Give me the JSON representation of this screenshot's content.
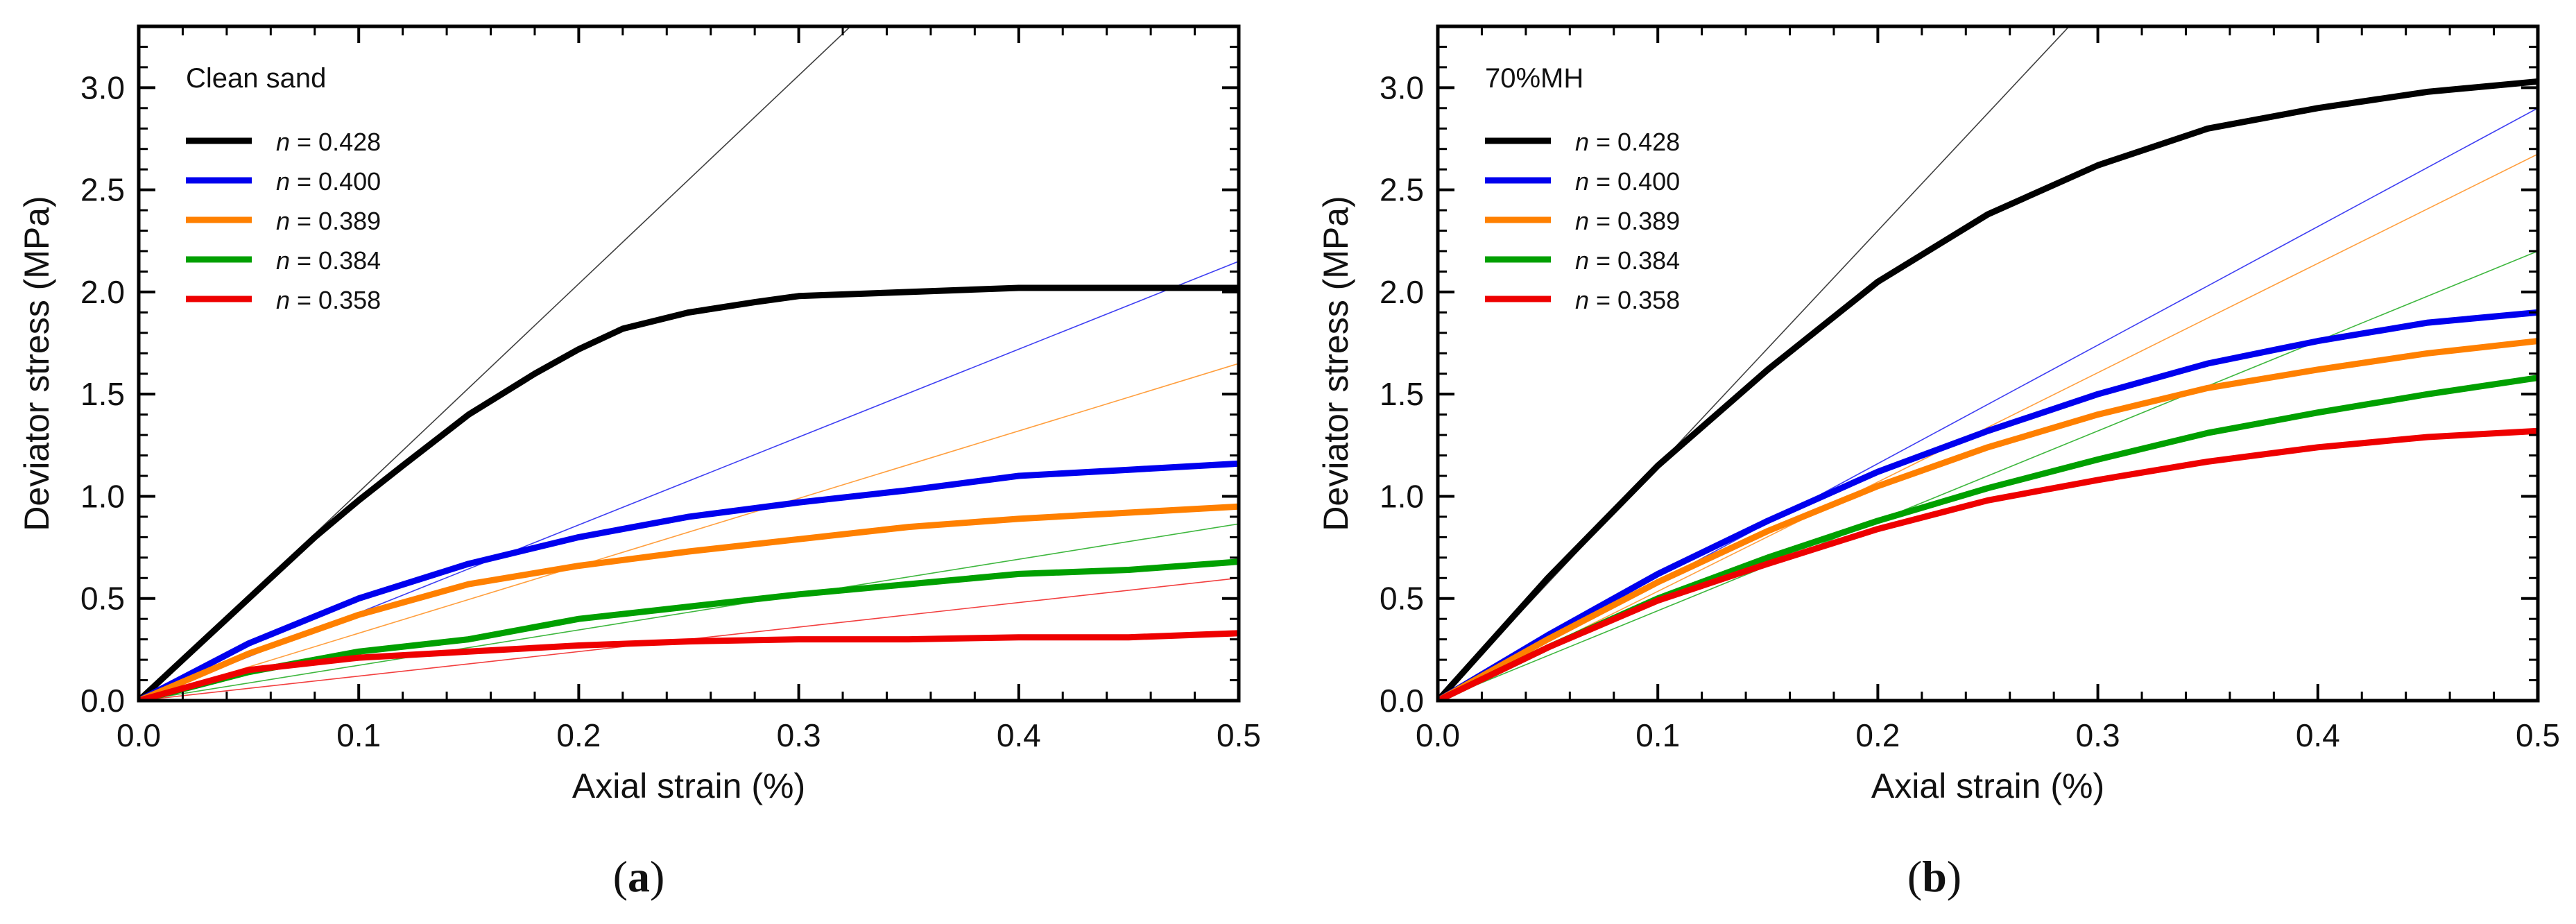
{
  "chart_data": [
    {
      "type": "line",
      "panel_label": "(a)",
      "annotation": "Clean sand",
      "xlabel": "Axial strain (%)",
      "ylabel": "Deviator stress (MPa)",
      "xlim": [
        0,
        0.5
      ],
      "ylim": [
        0,
        3.3
      ],
      "xticks": [
        "0.0",
        "0.1",
        "0.2",
        "0.3",
        "0.4",
        "0.5"
      ],
      "yticks": [
        "0.0",
        "0.5",
        "1.0",
        "1.5",
        "2.0",
        "2.5",
        "3.0"
      ],
      "legend_position": "top-left",
      "series": [
        {
          "name": "n = 0.428",
          "legend_var": "n",
          "legend_value": "= 0.428",
          "color": "#000000",
          "x": [
            0,
            0.02,
            0.05,
            0.08,
            0.1,
            0.12,
            0.15,
            0.18,
            0.2,
            0.22,
            0.25,
            0.28,
            0.3,
            0.35,
            0.4,
            0.45,
            0.5
          ],
          "y": [
            0,
            0.2,
            0.5,
            0.8,
            0.98,
            1.15,
            1.4,
            1.6,
            1.72,
            1.82,
            1.9,
            1.95,
            1.98,
            2.0,
            2.02,
            2.02,
            2.02
          ],
          "tangent_slope": 10.2
        },
        {
          "name": "n = 0.400",
          "legend_var": "n",
          "legend_value": "= 0.400",
          "color": "#0000ee",
          "x": [
            0,
            0.05,
            0.1,
            0.15,
            0.2,
            0.25,
            0.3,
            0.35,
            0.4,
            0.45,
            0.5
          ],
          "y": [
            0,
            0.28,
            0.5,
            0.67,
            0.8,
            0.9,
            0.97,
            1.03,
            1.1,
            1.13,
            1.16
          ],
          "tangent_slope": 4.3
        },
        {
          "name": "n = 0.389",
          "legend_var": "n",
          "legend_value": "= 0.389",
          "color": "#ff8000",
          "x": [
            0,
            0.05,
            0.1,
            0.15,
            0.2,
            0.25,
            0.3,
            0.35,
            0.4,
            0.45,
            0.5
          ],
          "y": [
            0,
            0.23,
            0.42,
            0.57,
            0.66,
            0.73,
            0.79,
            0.85,
            0.89,
            0.92,
            0.95
          ],
          "tangent_slope": 3.3
        },
        {
          "name": "n = 0.384",
          "legend_var": "n",
          "legend_value": "= 0.384",
          "color": "#00a000",
          "x": [
            0,
            0.05,
            0.1,
            0.15,
            0.2,
            0.25,
            0.3,
            0.35,
            0.4,
            0.45,
            0.5
          ],
          "y": [
            0,
            0.14,
            0.24,
            0.3,
            0.4,
            0.46,
            0.52,
            0.57,
            0.62,
            0.64,
            0.68
          ],
          "tangent_slope": 1.73
        },
        {
          "name": "n = 0.358",
          "legend_var": "n",
          "legend_value": "= 0.358",
          "color": "#ee0000",
          "x": [
            0,
            0.05,
            0.1,
            0.15,
            0.2,
            0.25,
            0.3,
            0.35,
            0.4,
            0.45,
            0.5
          ],
          "y": [
            0,
            0.15,
            0.21,
            0.24,
            0.27,
            0.29,
            0.3,
            0.3,
            0.31,
            0.31,
            0.33
          ],
          "tangent_slope": 1.2
        }
      ]
    },
    {
      "type": "line",
      "panel_label": "(b)",
      "annotation": "70%MH",
      "xlabel": "Axial strain (%)",
      "ylabel": "Deviator stress (MPa)",
      "xlim": [
        0,
        0.5
      ],
      "ylim": [
        0,
        3.3
      ],
      "xticks": [
        "0.0",
        "0.1",
        "0.2",
        "0.3",
        "0.4",
        "0.5"
      ],
      "yticks": [
        "0.0",
        "0.5",
        "1.0",
        "1.5",
        "2.0",
        "2.5",
        "3.0"
      ],
      "legend_position": "top-left",
      "series": [
        {
          "name": "n = 0.428",
          "legend_var": "n",
          "legend_value": "= 0.428",
          "color": "#000000",
          "x": [
            0,
            0.05,
            0.1,
            0.15,
            0.2,
            0.25,
            0.3,
            0.35,
            0.4,
            0.45,
            0.5
          ],
          "y": [
            0,
            0.6,
            1.15,
            1.62,
            2.05,
            2.38,
            2.62,
            2.8,
            2.9,
            2.98,
            3.03
          ],
          "tangent_slope": 11.5
        },
        {
          "name": "n = 0.400",
          "legend_var": "n",
          "legend_value": "= 0.400",
          "color": "#0000ee",
          "x": [
            0,
            0.05,
            0.1,
            0.15,
            0.2,
            0.25,
            0.3,
            0.35,
            0.4,
            0.45,
            0.5
          ],
          "y": [
            0,
            0.32,
            0.62,
            0.88,
            1.12,
            1.32,
            1.5,
            1.65,
            1.76,
            1.85,
            1.9
          ],
          "tangent_slope": 5.8
        },
        {
          "name": "n = 0.389",
          "legend_var": "n",
          "legend_value": "= 0.389",
          "color": "#ff8000",
          "x": [
            0,
            0.05,
            0.1,
            0.15,
            0.2,
            0.25,
            0.3,
            0.35,
            0.4,
            0.45,
            0.5
          ],
          "y": [
            0,
            0.3,
            0.58,
            0.83,
            1.05,
            1.24,
            1.4,
            1.53,
            1.62,
            1.7,
            1.76
          ],
          "tangent_slope": 5.35
        },
        {
          "name": "n = 0.384",
          "legend_var": "n",
          "legend_value": "= 0.384",
          "color": "#00a000",
          "x": [
            0,
            0.05,
            0.1,
            0.15,
            0.2,
            0.25,
            0.3,
            0.35,
            0.4,
            0.45,
            0.5
          ],
          "y": [
            0,
            0.26,
            0.5,
            0.7,
            0.88,
            1.04,
            1.18,
            1.31,
            1.41,
            1.5,
            1.58
          ],
          "tangent_slope": 4.4
        },
        {
          "name": "n = 0.358",
          "legend_var": "n",
          "legend_value": "= 0.358",
          "color": "#ee0000",
          "x": [
            0,
            0.05,
            0.1,
            0.15,
            0.2,
            0.25,
            0.3,
            0.35,
            0.4,
            0.45,
            0.5
          ],
          "y": [
            0,
            0.26,
            0.49,
            0.67,
            0.84,
            0.98,
            1.08,
            1.17,
            1.24,
            1.29,
            1.32
          ],
          "tangent_slope": null
        }
      ]
    }
  ]
}
